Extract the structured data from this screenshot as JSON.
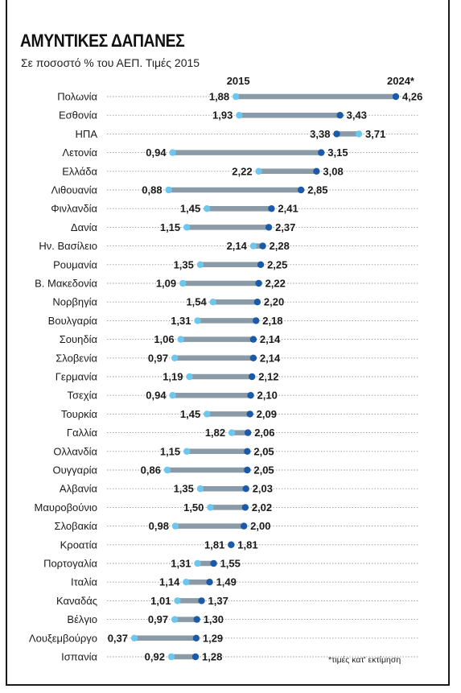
{
  "title": "ΑΜΥΝΤΙΚΕΣ ΔΑΠΑΝΕΣ",
  "subtitle": "Σε ποσοστό % του ΑΕΠ. Τιμές 2015",
  "footnote": "*τιμές κατ' εκτίμηση",
  "colors": {
    "bar": "#8a9aa6",
    "dot_2015": "#6cc6ee",
    "dot_2024": "#1a5aa8",
    "leader": "#9a9a9a"
  },
  "chart_data": {
    "type": "dumbbell",
    "title": "ΑΜΥΝΤΙΚΕΣ ΔΑΠΑΝΕΣ",
    "subtitle": "Σε ποσοστό % του ΑΕΠ. Τιμές 2015",
    "xlim": [
      0.37,
      4.26
    ],
    "grid": false,
    "series": [
      {
        "name": "2015",
        "color": "#6cc6ee"
      },
      {
        "name": "2024*",
        "color": "#1a5aa8"
      }
    ],
    "rows": [
      {
        "country": "Πολωνία",
        "v2015": 1.88,
        "v2024": 4.26
      },
      {
        "country": "Εσθονία",
        "v2015": 1.93,
        "v2024": 3.43
      },
      {
        "country": "ΗΠΑ",
        "v2015": 3.71,
        "v2024": 3.38
      },
      {
        "country": "Λετονία",
        "v2015": 0.94,
        "v2024": 3.15
      },
      {
        "country": "Ελλάδα",
        "v2015": 2.22,
        "v2024": 3.08
      },
      {
        "country": "Λιθουανία",
        "v2015": 0.88,
        "v2024": 2.85
      },
      {
        "country": "Φινλανδία",
        "v2015": 1.45,
        "v2024": 2.41
      },
      {
        "country": "Δανία",
        "v2015": 1.15,
        "v2024": 2.37
      },
      {
        "country": "Ην. Βασίλειο",
        "v2015": 2.14,
        "v2024": 2.28
      },
      {
        "country": "Ρουμανία",
        "v2015": 1.35,
        "v2024": 2.25
      },
      {
        "country": "Β. Μακεδονία",
        "v2015": 1.09,
        "v2024": 2.22
      },
      {
        "country": "Νορβηγία",
        "v2015": 1.54,
        "v2024": 2.2
      },
      {
        "country": "Βουλγαρία",
        "v2015": 1.31,
        "v2024": 2.18
      },
      {
        "country": "Σουηδία",
        "v2015": 1.06,
        "v2024": 2.14
      },
      {
        "country": "Σλοβενία",
        "v2015": 0.97,
        "v2024": 2.14
      },
      {
        "country": "Γερμανία",
        "v2015": 1.19,
        "v2024": 2.12
      },
      {
        "country": "Τσεχία",
        "v2015": 0.94,
        "v2024": 2.1
      },
      {
        "country": "Τουρκία",
        "v2015": 1.45,
        "v2024": 2.09
      },
      {
        "country": "Γαλλία",
        "v2015": 1.82,
        "v2024": 2.06
      },
      {
        "country": "Ολλανδία",
        "v2015": 1.15,
        "v2024": 2.05
      },
      {
        "country": "Ουγγαρία",
        "v2015": 0.86,
        "v2024": 2.05
      },
      {
        "country": "Αλβανία",
        "v2015": 1.35,
        "v2024": 2.03
      },
      {
        "country": "Μαυροβούνιο",
        "v2015": 1.5,
        "v2024": 2.02
      },
      {
        "country": "Σλοβακία",
        "v2015": 0.98,
        "v2024": 2.0
      },
      {
        "country": "Κροατία",
        "v2015": 1.81,
        "v2024": 1.81
      },
      {
        "country": "Πορτογαλία",
        "v2015": 1.31,
        "v2024": 1.55
      },
      {
        "country": "Ιταλία",
        "v2015": 1.14,
        "v2024": 1.49
      },
      {
        "country": "Καναδάς",
        "v2015": 1.01,
        "v2024": 1.37
      },
      {
        "country": "Βέλγιο",
        "v2015": 0.97,
        "v2024": 1.3
      },
      {
        "country": "Λουξεμβούργο",
        "v2015": 0.37,
        "v2024": 1.29
      },
      {
        "country": "Ισπανία",
        "v2015": 0.92,
        "v2024": 1.28
      }
    ]
  }
}
